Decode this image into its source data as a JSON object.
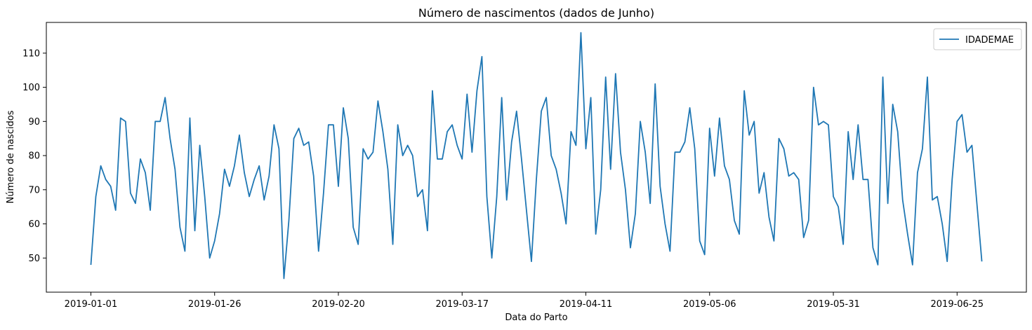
{
  "chart_data": {
    "type": "line",
    "title": "Número de nascimentos (dados de Junho)",
    "xlabel": "Data do Parto",
    "ylabel": "Número de nascidos",
    "x_start": "2019-01-01",
    "x_end": "2019-06-30",
    "xlim": [
      "2018-12-23",
      "2019-07-09"
    ],
    "ylim": [
      40,
      119
    ],
    "x_ticks": [
      "2019-01-01",
      "2019-01-26",
      "2019-02-20",
      "2019-03-17",
      "2019-04-11",
      "2019-05-06",
      "2019-05-31",
      "2019-06-25"
    ],
    "y_ticks": [
      50,
      60,
      70,
      80,
      90,
      100,
      110
    ],
    "grid": false,
    "legend_position": "top-right",
    "series": [
      {
        "name": "IDADEMAE",
        "color": "#1f77b4",
        "values": [
          48,
          68,
          77,
          73,
          71,
          64,
          91,
          90,
          69,
          66,
          79,
          75,
          64,
          90,
          90,
          97,
          85,
          76,
          59,
          52,
          91,
          58,
          83,
          68,
          50,
          55,
          63,
          76,
          71,
          77,
          86,
          75,
          68,
          73,
          77,
          67,
          74,
          89,
          82,
          44,
          61,
          85,
          88,
          83,
          84,
          74,
          52,
          69,
          89,
          89,
          71,
          94,
          85,
          59,
          54,
          82,
          79,
          81,
          96,
          87,
          76,
          54,
          89,
          80,
          83,
          80,
          68,
          70,
          58,
          99,
          79,
          79,
          87,
          89,
          83,
          79,
          98,
          81,
          99,
          109,
          68,
          50,
          68,
          97,
          67,
          84,
          93,
          79,
          64,
          49,
          73,
          93,
          97,
          80,
          76,
          69,
          60,
          87,
          83,
          116,
          82,
          97,
          57,
          70,
          103,
          76,
          104,
          81,
          70,
          53,
          63,
          90,
          81,
          66,
          101,
          71,
          60,
          52,
          81,
          81,
          84,
          94,
          82,
          55,
          51,
          88,
          74,
          91,
          77,
          73,
          61,
          57,
          99,
          86,
          90,
          69,
          75,
          62,
          55,
          85,
          82,
          74,
          75,
          73,
          56,
          61,
          100,
          89,
          90,
          89,
          68,
          65,
          54,
          87,
          73,
          89,
          73,
          73,
          53,
          48,
          103,
          66,
          95,
          87,
          67,
          57,
          48,
          75,
          82,
          103,
          67,
          68,
          60,
          49,
          73,
          90,
          92,
          81,
          83,
          66,
          49
        ]
      }
    ]
  }
}
